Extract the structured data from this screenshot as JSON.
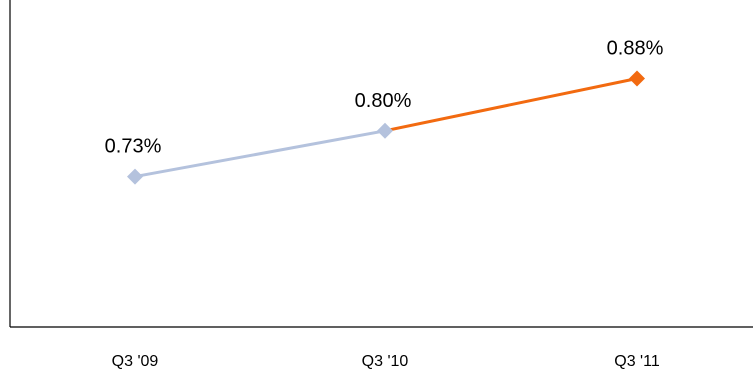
{
  "chart_data": {
    "type": "line",
    "categories": [
      "Q3 '09",
      "Q3 '10",
      "Q3 '11"
    ],
    "values": [
      0.73,
      0.8,
      0.88
    ],
    "data_labels": [
      "0.73%",
      "0.80%",
      "0.88%"
    ],
    "ylim": [
      0.5,
      1.0
    ],
    "grid": false,
    "colors": {
      "historical": "#b4c2dd",
      "current": "#f26a10",
      "axis": "#000000"
    }
  }
}
